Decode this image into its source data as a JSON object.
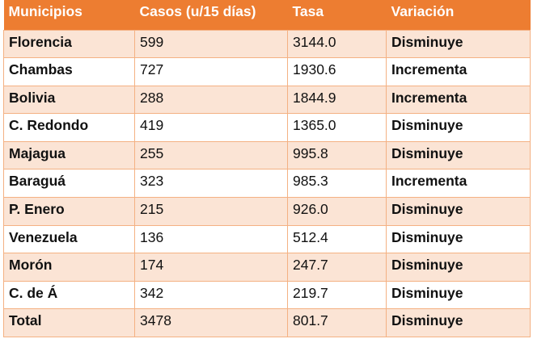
{
  "table": {
    "headers": [
      "Municipios",
      "Casos (u/15 días)",
      "Tasa",
      "Variación"
    ],
    "rows": [
      {
        "municipio": "Florencia",
        "casos": "599",
        "tasa": "3144.0",
        "variacion": "Disminuye"
      },
      {
        "municipio": "Chambas",
        "casos": "727",
        "tasa": "1930.6",
        "variacion": "Incrementa"
      },
      {
        "municipio": "Bolivia",
        "casos": "288",
        "tasa": "1844.9",
        "variacion": "Incrementa"
      },
      {
        "municipio": "C. Redondo",
        "casos": "419",
        "tasa": "1365.0",
        "variacion": "Disminuye"
      },
      {
        "municipio": "Majagua",
        "casos": "255",
        "tasa": "995.8",
        "variacion": "Disminuye"
      },
      {
        "municipio": "Baraguá",
        "casos": "323",
        "tasa": "985.3",
        "variacion": "Incrementa"
      },
      {
        "municipio": "P. Enero",
        "casos": "215",
        "tasa": "926.0",
        "variacion": "Disminuye"
      },
      {
        "municipio": "Venezuela",
        "casos": "136",
        "tasa": "512.4",
        "variacion": "Disminuye"
      },
      {
        "municipio": "Morón",
        "casos": "174",
        "tasa": "247.7",
        "variacion": "Disminuye"
      },
      {
        "municipio": "C. de Á",
        "casos": "342",
        "tasa": "219.7",
        "variacion": "Disminuye"
      },
      {
        "municipio": "Total",
        "casos": "3478",
        "tasa": "801.7",
        "variacion": "Disminuye"
      }
    ]
  },
  "colors": {
    "header_bg": "#ed7d31",
    "band_bg": "#fbe4d5",
    "border": "#f4b183"
  }
}
